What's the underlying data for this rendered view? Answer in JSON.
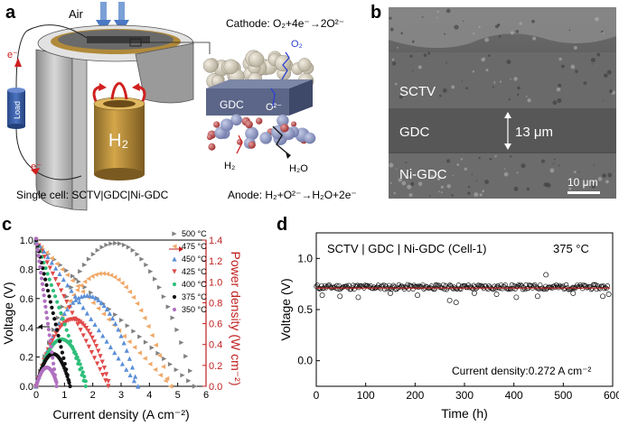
{
  "panel_a": {
    "letter": "a",
    "air": "Air",
    "cathode_eq": "Cathode: O₂+4e⁻→2O²⁻",
    "o2_label": "O₂",
    "gdc_label": "GDC",
    "o2minus_label": "O²⁻",
    "h2_label": "H₂",
    "h2o_label": "H₂O",
    "load_label": "Load",
    "h2_cylinder": "H₂",
    "e_top": "e⁻",
    "e_bottom": "e⁻",
    "single_cell": "Single cell: SCTV|GDC|Ni-GDC",
    "anode_eq": "Anode: H₂+O²⁻→H₂O+2e⁻"
  },
  "panel_b": {
    "letter": "b",
    "sctv": "SCTV",
    "gdc": "GDC",
    "thickness": "13 μm",
    "nigdc": "Ni-GDC",
    "scalebar": "10 μm"
  },
  "chart_data": [
    {
      "panel": "c",
      "type": "line",
      "xlabel": "Current density (A cm⁻²)",
      "ylabel": "Voltage (V)",
      "y2label": "Power density (W cm⁻²)",
      "xlim": [
        0,
        6
      ],
      "ylim": [
        0,
        1.0
      ],
      "y2lim": [
        0,
        1.4
      ],
      "xticks": [
        "0",
        "1",
        "2",
        "3",
        "4",
        "5",
        "6"
      ],
      "yticks": [
        "0.0",
        "0.2",
        "0.4",
        "0.6",
        "0.8",
        "1.0"
      ],
      "y2ticks": [
        "0.0",
        "0.2",
        "0.4",
        "0.6",
        "0.8",
        "1.0",
        "1.2",
        "1.4"
      ],
      "legend_position": "top-right",
      "series": [
        {
          "name": "500 °C",
          "color": "#808080",
          "marker": "triangle-right",
          "ocv": 0.98,
          "jmax": 5.6,
          "pmax": 1.37,
          "jpeak": 2.8
        },
        {
          "name": "475 °C",
          "color": "#f0a868",
          "marker": "triangle-left",
          "ocv": 0.99,
          "jmax": 4.75,
          "pmax": 1.08,
          "jpeak": 2.35
        },
        {
          "name": "450 °C",
          "color": "#5b8fd8",
          "marker": "triangle-up",
          "ocv": 1.0,
          "jmax": 3.6,
          "pmax": 0.87,
          "jpeak": 1.8
        },
        {
          "name": "425 °C",
          "color": "#e04848",
          "marker": "triangle-down",
          "ocv": 1.0,
          "jmax": 2.55,
          "pmax": 0.64,
          "jpeak": 1.3
        },
        {
          "name": "400 °C",
          "color": "#2fbf7a",
          "marker": "circle",
          "ocv": 1.0,
          "jmax": 1.75,
          "pmax": 0.45,
          "jpeak": 0.9
        },
        {
          "name": "375 °C",
          "color": "#111111",
          "marker": "circle",
          "ocv": 1.0,
          "jmax": 1.2,
          "pmax": 0.31,
          "jpeak": 0.6
        },
        {
          "name": "350 °C",
          "color": "#b070c0",
          "marker": "circle",
          "ocv": 1.01,
          "jmax": 0.72,
          "pmax": 0.18,
          "jpeak": 0.38
        }
      ]
    },
    {
      "panel": "d",
      "type": "scatter",
      "xlabel": "Time (h)",
      "ylabel": "Voltage (V)",
      "xlim": [
        0,
        600
      ],
      "ylim": [
        -0.25,
        1.25
      ],
      "xticks": [
        "0",
        "100",
        "200",
        "300",
        "400",
        "500",
        "600"
      ],
      "yticks": [
        "0.0",
        "0.5",
        "1.0"
      ],
      "title": "SCTV | GDC | Ni-GDC (Cell-1)",
      "temperature": "375 °C",
      "annotation": "Current density:0.272 A cm⁻²",
      "series": [
        {
          "values_mean": 0.72,
          "fit": 0.71,
          "outliers": [
            [
              12,
              0.64
            ],
            [
              48,
              0.63
            ],
            [
              85,
              0.62
            ],
            [
              150,
              0.66
            ],
            [
              205,
              0.64
            ],
            [
              270,
              0.59
            ],
            [
              283,
              0.57
            ],
            [
              320,
              0.66
            ],
            [
              365,
              0.65
            ],
            [
              405,
              0.62
            ],
            [
              448,
              0.63
            ],
            [
              465,
              0.84
            ],
            [
              520,
              0.66
            ],
            [
              580,
              0.63
            ],
            [
              592,
              0.65
            ]
          ]
        }
      ]
    }
  ]
}
